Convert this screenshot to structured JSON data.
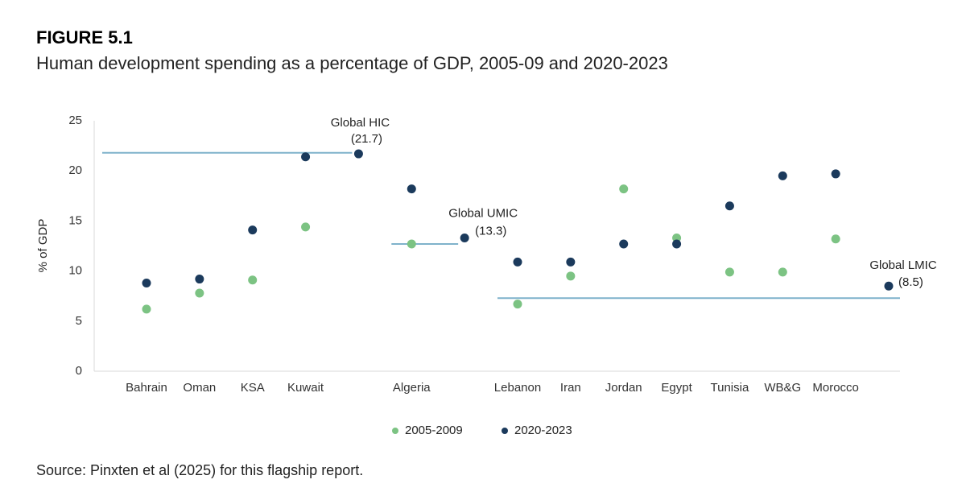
{
  "chart_data": {
    "type": "dot",
    "figure_label": "FIGURE 5.1",
    "title": "Human development spending as a percentage of GDP, 2005-09 and 2020-2023",
    "y_label": "% of GDP",
    "source": "Source: Pinxten et al (2025) for this flagship report.",
    "categories": [
      "Bahrain",
      "Oman",
      "KSA",
      "Kuwait",
      null,
      "Algeria",
      null,
      "Lebanon",
      "Iran",
      "Jordan",
      "Egypt",
      "Tunisia",
      "WB&G",
      "Morocco",
      null
    ],
    "series": [
      {
        "name": "2005-2009",
        "color": "#7cc383",
        "values": [
          6.2,
          7.8,
          9.1,
          14.4,
          null,
          12.7,
          null,
          6.7,
          9.5,
          18.2,
          13.3,
          9.9,
          9.9,
          13.2,
          null
        ]
      },
      {
        "name": "2020-2023",
        "color": "#1b3a5c",
        "values": [
          8.8,
          9.2,
          14.1,
          21.4,
          21.7,
          18.2,
          13.3,
          10.9,
          10.9,
          12.7,
          12.7,
          16.5,
          19.5,
          19.7,
          8.5
        ],
        "value_labels": [
          null,
          null,
          null,
          null,
          "(21.7)",
          null,
          "(13.3)",
          null,
          null,
          null,
          null,
          null,
          null,
          null,
          "(8.5)"
        ]
      }
    ],
    "annotations": [
      {
        "text": "Global HIC",
        "category": 4
      },
      {
        "text": "Global UMIC",
        "category": 6
      },
      {
        "text": "Global LMIC",
        "category": 14
      }
    ],
    "reference_lines": [
      {
        "value": 21.8,
        "start": 0,
        "end": 4
      },
      {
        "value": 12.7,
        "start": 5,
        "end": 6
      },
      {
        "value": 7.3,
        "start": 7,
        "end": 14
      }
    ],
    "reference_color": "#7fb2cb",
    "ylim": [
      0,
      25
    ],
    "yticks": [
      0,
      5,
      10,
      15,
      20,
      25
    ],
    "legend": "bottom"
  }
}
